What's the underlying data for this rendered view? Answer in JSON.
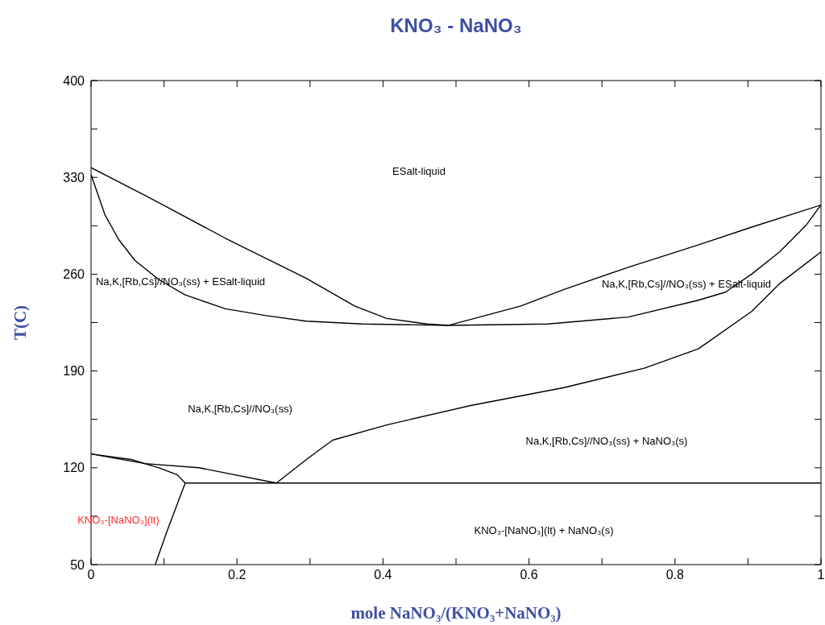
{
  "chart_data": {
    "type": "line",
    "title": "KNO₃ - NaNO₃",
    "xlabel": "mole NaNO₃/(KNO₃+NaNO₃)",
    "ylabel": "T(C)",
    "xlim": [
      0,
      1
    ],
    "xticks": [
      0,
      {
        "value": 0.1,
        "label": null
      },
      0.2,
      {
        "value": 0.3,
        "label": null
      },
      0.4,
      {
        "value": 0.5,
        "label": null
      },
      0.6,
      {
        "value": 0.7,
        "label": null
      },
      0.8,
      {
        "value": 0.9,
        "label": null
      },
      1
    ],
    "ylim": [
      50,
      400
    ],
    "yticks": [
      50,
      {
        "value": 85,
        "label": null
      },
      120,
      {
        "value": 155,
        "label": null
      },
      190,
      {
        "value": 225,
        "label": null
      },
      260,
      {
        "value": 295,
        "label": null
      },
      330,
      {
        "value": 365,
        "label": null
      },
      400
    ],
    "marker": "none",
    "line_style": "solid",
    "series": [
      {
        "color": "#000000",
        "x": [
          0,
          0.074,
          0.184,
          0.295,
          0.361,
          0.405,
          0.46,
          0.49,
          0.589,
          0.648,
          0.736,
          0.831,
          0.905,
          1
        ],
        "values": [
          337,
          317,
          286,
          257,
          237,
          228,
          224,
          223,
          237,
          249,
          265,
          281,
          294,
          310
        ]
      },
      {
        "color": "#000000",
        "x": [
          0,
          0.019,
          0.038,
          0.06,
          0.093,
          0.129,
          0.184,
          0.24,
          0.295,
          0.372,
          0.49,
          0.626,
          0.736,
          0.831,
          0.869,
          0.905,
          0.943,
          0.979,
          1
        ],
        "values": [
          332,
          303,
          285,
          270,
          256,
          245,
          235,
          230,
          226,
          224,
          223,
          224,
          229,
          241,
          247,
          260,
          276,
          295,
          310
        ]
      },
      {
        "color": "#000000",
        "x": [
          0,
          0.074,
          0.148,
          0.254,
          0.295,
          0.331,
          0.405,
          0.52,
          0.648,
          0.758,
          0.832,
          0.905,
          0.943,
          1
        ],
        "values": [
          130,
          123,
          120,
          109,
          126,
          140,
          151,
          165,
          178,
          192,
          206,
          233,
          253,
          276
        ]
      },
      {
        "color": "#000000",
        "x": [
          0.088,
          0.104,
          0.129,
          1
        ],
        "values": [
          50,
          74,
          109,
          109
        ]
      },
      {
        "color": "#000000",
        "x": [
          0,
          0.055,
          0.093,
          0.118,
          0.129
        ],
        "values": [
          130,
          126,
          120,
          115,
          109
        ]
      }
    ],
    "annotations": [
      "ESalt-liquid",
      "Na,K,[Rb,Cs]//NO₃(ss) + ESalt-liquid",
      "Na,K,[Rb,Cs]//NO₃(ss) + ESalt-liquid",
      "Na,K,[Rb,Cs]//NO₃(ss)",
      "Na,K,[Rb,Cs]//NO₃(ss) + NaNO₃(s)",
      "KNO₃-[NaNO₃](lt)",
      "KNO₃-[NaNO₃](lt) + NaNO₃(s)"
    ]
  }
}
